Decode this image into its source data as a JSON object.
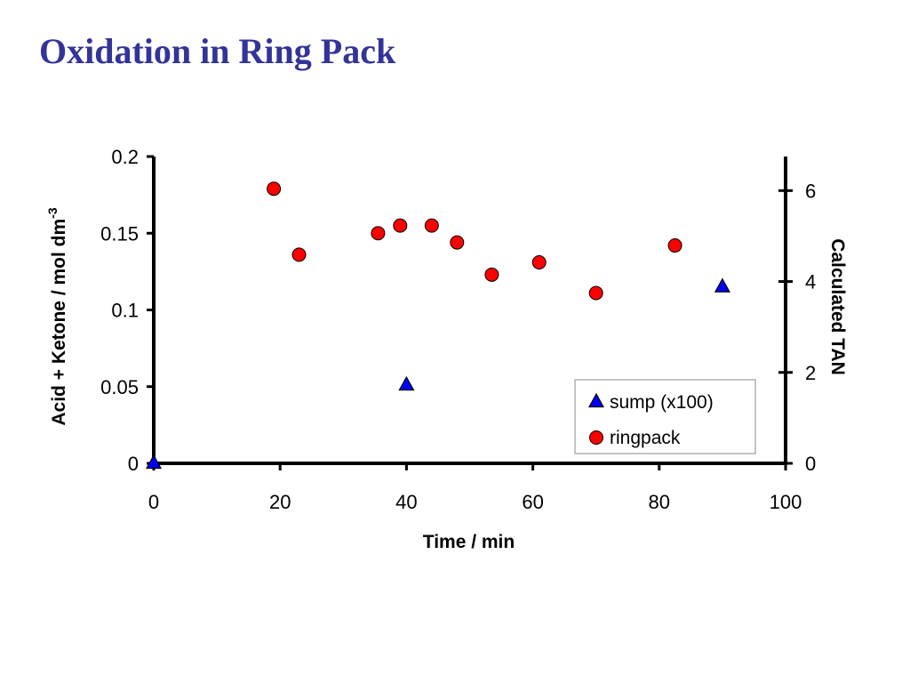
{
  "title": "Oxidation in Ring Pack",
  "chart_data": {
    "type": "scatter",
    "xlabel": "Time / min",
    "ylabel": "Acid + Ketone / mol dm",
    "ylabel_superscript": "-3",
    "y2label": "Calculated TAN",
    "xlim": [
      0,
      100
    ],
    "ylim": [
      0,
      0.2
    ],
    "y2lim": [
      0,
      6.75
    ],
    "xticks": [
      "0",
      "20",
      "40",
      "60",
      "80",
      "100"
    ],
    "xtick_values": [
      0,
      20,
      40,
      60,
      80,
      100
    ],
    "yticks": [
      "0",
      "0.05",
      "0.1",
      "0.15",
      "0.2"
    ],
    "ytick_values": [
      0,
      0.05,
      0.1,
      0.15,
      0.2
    ],
    "y2ticks": [
      "0",
      "2",
      "4",
      "6"
    ],
    "y2tick_values": [
      0,
      2,
      4,
      6
    ],
    "grid": false,
    "legend_position": "bottom-right",
    "series": [
      {
        "name": "sump (x100)",
        "marker": "triangle",
        "color": "#0000ff",
        "x": [
          0,
          40,
          90
        ],
        "y": [
          0,
          0.051,
          0.115
        ]
      },
      {
        "name": "ringpack",
        "marker": "circle",
        "color": "#ff0000",
        "x": [
          19,
          23,
          35.5,
          39,
          44,
          48,
          53.5,
          61,
          70,
          82.5
        ],
        "y": [
          0.179,
          0.136,
          0.15,
          0.155,
          0.155,
          0.144,
          0.123,
          0.131,
          0.111,
          0.142
        ]
      }
    ]
  }
}
